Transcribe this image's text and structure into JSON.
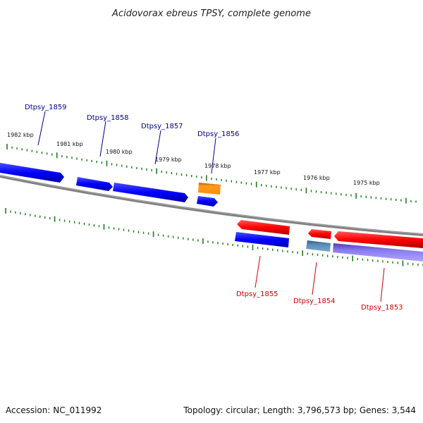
{
  "title": "Acidovorax ebreus TPSY, complete genome",
  "footer": {
    "accession": "Accession: NC_011992",
    "topology": "Topology: circular; Length: 3,796,573 bp; Genes: 3,544"
  },
  "ruler_labels": [
    "1982 kbp",
    "1981 kbp",
    "1980 kbp",
    "1979 kbp",
    "1978 kbp",
    "1977 kbp",
    "1976 kbp",
    "1975 kbp"
  ],
  "genes_top": [
    {
      "name": "Dtpsy_1859",
      "color": "#0000ff"
    },
    {
      "name": "Dtpsy_1858",
      "color": "#0000ff"
    },
    {
      "name": "Dtpsy_1857",
      "color": "#0000ff"
    },
    {
      "name": "Dtpsy_1856",
      "color": "#ff8c00"
    }
  ],
  "genes_bottom": [
    {
      "name": "Dtpsy_1855",
      "color": "#ff0000"
    },
    {
      "name": "Dtpsy_1854",
      "color": "#ff0000"
    },
    {
      "name": "Dtpsy_1853",
      "color": "#ff0000"
    }
  ],
  "colors": {
    "forward": "#0000ff",
    "reverse": "#ff0000",
    "orange": "#ff8c00",
    "steel": "#4a7fa8",
    "lavender": "#7b68ee",
    "ruler": "#1f7a1f",
    "backbone": "#808080",
    "label_top": "#00008b",
    "label_bottom": "#cc0000"
  }
}
